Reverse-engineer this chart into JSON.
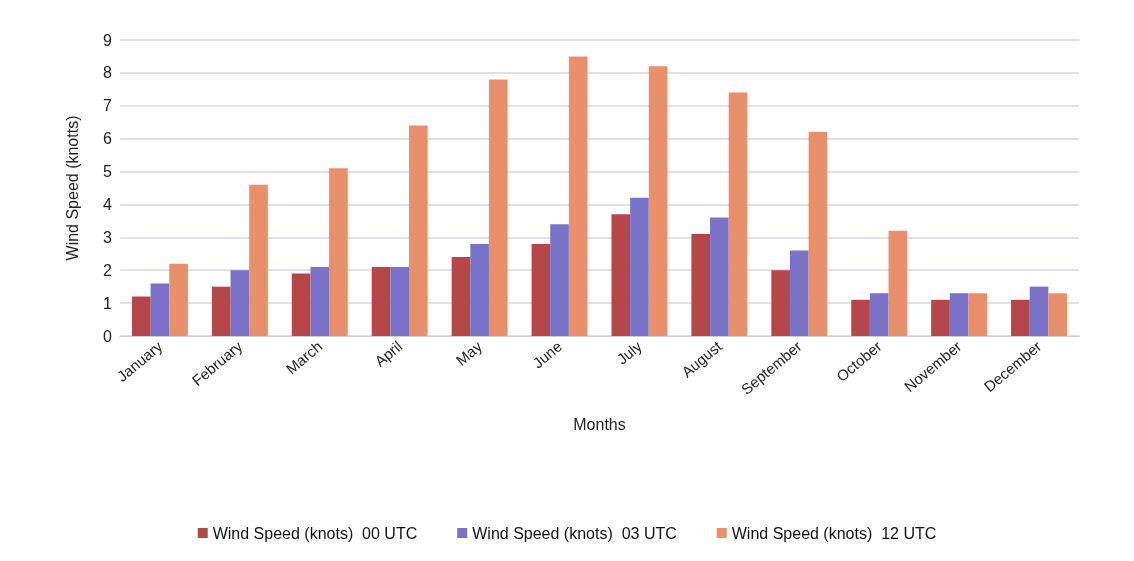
{
  "chart_data": {
    "type": "bar",
    "xlabel": "Months",
    "ylabel": "Wind Speed (knotts)",
    "categories": [
      "January",
      "February",
      "March",
      "April",
      "May",
      "June",
      "July",
      "August",
      "September",
      "October",
      "November",
      "December"
    ],
    "series": [
      {
        "name": "Wind Speed (knots)  00 UTC",
        "color": "#b5474b",
        "values": [
          1.2,
          1.5,
          1.9,
          2.1,
          2.4,
          2.8,
          3.7,
          3.1,
          2.0,
          1.1,
          1.1,
          1.1
        ]
      },
      {
        "name": "Wind Speed (knots)  03 UTC",
        "color": "#7a72c8",
        "values": [
          1.6,
          2.0,
          2.1,
          2.1,
          2.8,
          3.4,
          4.2,
          3.6,
          2.6,
          1.3,
          1.3,
          1.5
        ]
      },
      {
        "name": "Wind Speed (knots)  12 UTC",
        "color": "#e8906c",
        "values": [
          2.2,
          4.6,
          5.1,
          6.4,
          7.8,
          8.5,
          8.2,
          7.4,
          6.2,
          3.2,
          1.3,
          1.3
        ]
      }
    ],
    "ylim": [
      0,
      9
    ],
    "yticks": [
      0,
      1,
      2,
      3,
      4,
      5,
      6,
      7,
      8,
      9
    ],
    "grid": "y",
    "legend": "bottom"
  }
}
